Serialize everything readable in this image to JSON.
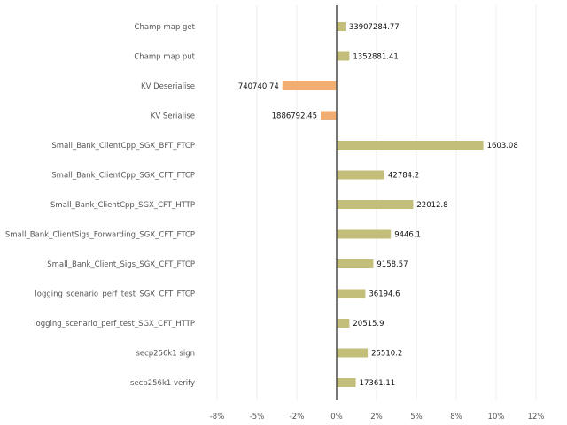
{
  "chart_data": {
    "type": "bar",
    "orientation": "horizontal",
    "categories": [
      "Champ map get",
      "Champ map put",
      "KV Deserialise",
      "KV Serialise",
      "Small_Bank_ClientCpp_SGX_BFT_FTCP",
      "Small_Bank_ClientCpp_SGX_CFT_FTCP",
      "Small_Bank_ClientCpp_SGX_CFT_HTTP",
      "Small_Bank_ClientSigs_Forwarding_SGX_CFT_FTCP",
      "Small_Bank_Client_Sigs_SGX_CFT_FTCP",
      "logging_scenario_perf_test_SGX_CFT_FTCP",
      "logging_scenario_perf_test_SGX_CFT_HTTP",
      "secp256k1 sign",
      "secp256k1 verify"
    ],
    "values": [
      0.55,
      0.8,
      -3.4,
      -1.0,
      9.2,
      3.0,
      4.8,
      3.4,
      2.3,
      1.8,
      0.8,
      1.95,
      1.2
    ],
    "value_labels": [
      "33907284.77",
      "1352881.41",
      "740740.74",
      "1886792.45",
      "1603.08",
      "42784.2",
      "22012.8",
      "9446.1",
      "9158.57",
      "36194.6",
      "20515.9",
      "25510.2",
      "17361.11"
    ],
    "x_ticks": [
      "-8%",
      "-5%",
      "-2%",
      "0%",
      "2%",
      "5%",
      "8%",
      "10%",
      "12%"
    ],
    "x_tick_values": [
      -7.5,
      -5,
      -2.5,
      0,
      2.5,
      5,
      7.5,
      10,
      12.5
    ],
    "xlim": [
      -8,
      12.5
    ],
    "grid": true,
    "colors": {
      "positive": "#c3be7a",
      "negative": "#f2ad73"
    }
  }
}
